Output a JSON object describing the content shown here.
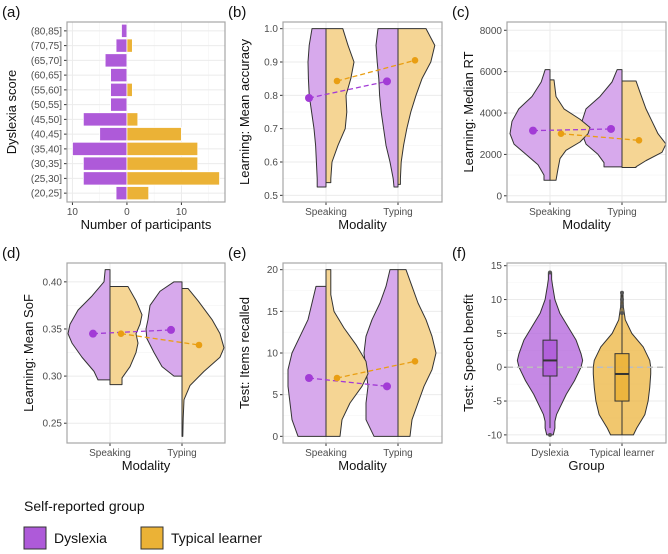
{
  "colors": {
    "dyslexia": "#AE5AD9",
    "dyslexia_light": "#D7A9EC",
    "typical": "#EBB236",
    "typical_light": "#F5D594",
    "outline": "#333333",
    "grid_major": "#EBEBEB",
    "grid_minor": "#F4F4F4",
    "frame": "#A6A6A6",
    "point_dys": "#A23BD6",
    "point_typ": "#E99E12"
  },
  "legend": {
    "title": "Self-reported group",
    "items": [
      {
        "key": "dyslexia",
        "label": "Dyslexia"
      },
      {
        "key": "typical",
        "label": "Typical learner"
      }
    ]
  },
  "chart_data": [
    {
      "id": "a",
      "panel_label": "(a)",
      "type": "bar",
      "orientation": "horizontal-back-to-back",
      "ylabel": "Dyslexia score",
      "xlabel": "Number of participants",
      "xticks": [
        -10,
        0,
        10
      ],
      "xtick_labels": [
        "10",
        "0",
        "10"
      ],
      "xlim": [
        -11,
        18
      ],
      "categories": [
        "(20,25]",
        "(25,30]",
        "(30,35]",
        "(35,40]",
        "(40,45]",
        "(45,50]",
        "(50,55]",
        "(55,60]",
        "(60,65]",
        "(65,70]",
        "(70,75]",
        "(80,85]"
      ],
      "series": [
        {
          "name": "Dyslexia",
          "values": [
            2,
            8,
            8,
            10,
            5,
            8,
            3,
            3,
            3,
            4,
            2,
            1
          ]
        },
        {
          "name": "Typical learner",
          "values": [
            4,
            17,
            13,
            13,
            10,
            2,
            0,
            1,
            0,
            0,
            1,
            0
          ]
        }
      ]
    },
    {
      "id": "b",
      "panel_label": "(b)",
      "type": "split-violin",
      "ylabel": "Learning: Mean accuracy",
      "xlabel": "Modality",
      "categories": [
        "Speaking",
        "Typing"
      ],
      "ylim": [
        0.48,
        1.02
      ],
      "yticks": [
        0.5,
        0.6,
        0.7,
        0.8,
        0.9,
        1.0
      ],
      "ytick_labels": [
        "0.5",
        "0.6",
        "0.7",
        "0.8",
        "0.9",
        "1.0"
      ],
      "means": {
        "Dyslexia": [
          0.792,
          0.842
        ],
        "Typical learner": [
          0.843,
          0.905
        ]
      },
      "violins": {
        "Dyslexia": [
          [
            [
              1.0,
              0.35
            ],
            [
              0.95,
              0.42
            ],
            [
              0.9,
              0.45
            ],
            [
              0.85,
              0.44
            ],
            [
              0.8,
              0.42
            ],
            [
              0.75,
              0.36
            ],
            [
              0.7,
              0.3
            ],
            [
              0.65,
              0.26
            ],
            [
              0.6,
              0.24
            ],
            [
              0.55,
              0.22
            ],
            [
              0.525,
              0.22
            ]
          ],
          [
            [
              1.0,
              0.5
            ],
            [
              0.95,
              0.55
            ],
            [
              0.9,
              0.52
            ],
            [
              0.85,
              0.48
            ],
            [
              0.8,
              0.46
            ],
            [
              0.75,
              0.42
            ],
            [
              0.7,
              0.36
            ],
            [
              0.65,
              0.3
            ],
            [
              0.6,
              0.2
            ],
            [
              0.55,
              0.12
            ],
            [
              0.525,
              0.1
            ]
          ]
        ],
        "Typical learner": [
          [
            [
              1.0,
              0.42
            ],
            [
              0.95,
              0.55
            ],
            [
              0.9,
              0.7
            ],
            [
              0.85,
              0.62
            ],
            [
              0.8,
              0.5
            ],
            [
              0.75,
              0.52
            ],
            [
              0.7,
              0.48
            ],
            [
              0.65,
              0.3
            ],
            [
              0.6,
              0.15
            ],
            [
              0.55,
              0.12
            ],
            [
              0.538,
              0.12
            ]
          ],
          [
            [
              1.0,
              0.7
            ],
            [
              0.95,
              0.92
            ],
            [
              0.9,
              0.82
            ],
            [
              0.85,
              0.6
            ],
            [
              0.8,
              0.45
            ],
            [
              0.75,
              0.32
            ],
            [
              0.7,
              0.22
            ],
            [
              0.65,
              0.14
            ],
            [
              0.6,
              0.08
            ],
            [
              0.55,
              0.06
            ],
            [
              0.533,
              0.06
            ]
          ]
        ]
      }
    },
    {
      "id": "c",
      "panel_label": "(c)",
      "type": "split-violin",
      "ylabel": "Learning: Median RT",
      "xlabel": "Modality",
      "categories": [
        "Speaking",
        "Typing"
      ],
      "ylim": [
        -300,
        8400
      ],
      "yticks": [
        0,
        2000,
        4000,
        6000,
        8000
      ],
      "ytick_labels": [
        "0",
        "2000",
        "4000",
        "6000",
        "8000"
      ],
      "means": {
        "Dyslexia": [
          3150,
          3230
        ],
        "Typical learner": [
          3000,
          2680
        ]
      },
      "violins": {
        "Dyslexia": [
          [
            [
              6100,
              0.12
            ],
            [
              5500,
              0.22
            ],
            [
              4800,
              0.45
            ],
            [
              4200,
              0.78
            ],
            [
              3600,
              0.95
            ],
            [
              3000,
              1.0
            ],
            [
              2500,
              0.9
            ],
            [
              2000,
              0.6
            ],
            [
              1500,
              0.3
            ],
            [
              1000,
              0.15
            ],
            [
              750,
              0.15
            ]
          ],
          [
            [
              6100,
              0.12
            ],
            [
              5500,
              0.25
            ],
            [
              4800,
              0.55
            ],
            [
              4200,
              0.9
            ],
            [
              3600,
              1.0
            ],
            [
              3000,
              1.0
            ],
            [
              2500,
              0.9
            ],
            [
              2000,
              0.6
            ],
            [
              1600,
              0.45
            ],
            [
              1400,
              0.45
            ]
          ]
        ],
        "Typical learner": [
          [
            [
              5600,
              0.1
            ],
            [
              4800,
              0.15
            ],
            [
              4200,
              0.35
            ],
            [
              3700,
              0.75
            ],
            [
              3300,
              1.0
            ],
            [
              3000,
              0.95
            ],
            [
              2600,
              0.75
            ],
            [
              2200,
              0.4
            ],
            [
              1800,
              0.25
            ],
            [
              1300,
              0.2
            ],
            [
              750,
              0.15
            ]
          ],
          [
            [
              5550,
              0.35
            ],
            [
              5000,
              0.45
            ],
            [
              4200,
              0.6
            ],
            [
              3600,
              0.75
            ],
            [
              3000,
              0.9
            ],
            [
              2500,
              1.1
            ],
            [
              2100,
              1.0
            ],
            [
              1700,
              0.6
            ],
            [
              1400,
              0.35
            ],
            [
              1370,
              0.35
            ]
          ]
        ]
      }
    },
    {
      "id": "d",
      "panel_label": "(d)",
      "type": "split-violin",
      "ylabel": "Learning: Mean SoF",
      "xlabel": "Modality",
      "categories": [
        "Speaking",
        "Typing"
      ],
      "ylim": [
        0.229,
        0.42
      ],
      "yticks": [
        0.25,
        0.3,
        0.35,
        0.4
      ],
      "ytick_labels": [
        "0.25",
        "0.30",
        "0.35",
        "0.40"
      ],
      "means": {
        "Dyslexia": [
          0.345,
          0.349
        ],
        "Typical learner": [
          0.345,
          0.333
        ]
      },
      "violins": {
        "Dyslexia": [
          [
            [
              0.413,
              0.12
            ],
            [
              0.4,
              0.15
            ],
            [
              0.385,
              0.45
            ],
            [
              0.37,
              0.8
            ],
            [
              0.355,
              1.0
            ],
            [
              0.345,
              1.05
            ],
            [
              0.335,
              0.95
            ],
            [
              0.32,
              0.7
            ],
            [
              0.305,
              0.4
            ],
            [
              0.296,
              0.3
            ]
          ],
          [
            [
              0.4,
              0.2
            ],
            [
              0.39,
              0.55
            ],
            [
              0.375,
              0.8
            ],
            [
              0.36,
              0.85
            ],
            [
              0.35,
              0.9
            ],
            [
              0.34,
              0.88
            ],
            [
              0.325,
              0.7
            ],
            [
              0.31,
              0.5
            ],
            [
              0.3,
              0.2
            ]
          ]
        ],
        "Typical learner": [
          [
            [
              0.395,
              0.45
            ],
            [
              0.38,
              0.65
            ],
            [
              0.365,
              0.8
            ],
            [
              0.355,
              0.75
            ],
            [
              0.345,
              0.65
            ],
            [
              0.335,
              0.7
            ],
            [
              0.325,
              0.65
            ],
            [
              0.31,
              0.5
            ],
            [
              0.298,
              0.3
            ],
            [
              0.291,
              0.3
            ]
          ],
          [
            [
              0.393,
              0.15
            ],
            [
              0.38,
              0.4
            ],
            [
              0.36,
              0.75
            ],
            [
              0.345,
              0.95
            ],
            [
              0.33,
              1.05
            ],
            [
              0.32,
              0.95
            ],
            [
              0.305,
              0.55
            ],
            [
              0.29,
              0.2
            ],
            [
              0.275,
              0.05
            ],
            [
              0.255,
              0.03
            ],
            [
              0.236,
              0.02
            ]
          ]
        ]
      }
    },
    {
      "id": "e",
      "panel_label": "(e)",
      "type": "split-violin",
      "ylabel": "Test: Items recalled",
      "xlabel": "Modality",
      "categories": [
        "Speaking",
        "Typing"
      ],
      "ylim": [
        -0.8,
        20.8
      ],
      "yticks": [
        0,
        5,
        10,
        15,
        20
      ],
      "ytick_labels": [
        "0",
        "5",
        "10",
        "15",
        "20"
      ],
      "means": {
        "Dyslexia": [
          7.0,
          6.0
        ],
        "Typical learner": [
          7.0,
          9.0
        ]
      },
      "violins": {
        "Dyslexia": [
          [
            [
              18,
              0.25
            ],
            [
              16,
              0.35
            ],
            [
              14,
              0.45
            ],
            [
              12,
              0.65
            ],
            [
              10,
              0.85
            ],
            [
              8,
              0.95
            ],
            [
              6,
              0.95
            ],
            [
              4,
              0.9
            ],
            [
              2,
              0.85
            ],
            [
              0,
              0.7
            ]
          ],
          [
            [
              20,
              0.2
            ],
            [
              18,
              0.3
            ],
            [
              16,
              0.45
            ],
            [
              14,
              0.65
            ],
            [
              12,
              0.8
            ],
            [
              10,
              0.85
            ],
            [
              8,
              0.8
            ],
            [
              6,
              0.75
            ],
            [
              4,
              0.8
            ],
            [
              2,
              0.8
            ],
            [
              0,
              0.6
            ]
          ]
        ],
        "Typical learner": [
          [
            [
              20,
              0.12
            ],
            [
              17,
              0.12
            ],
            [
              15,
              0.2
            ],
            [
              13,
              0.45
            ],
            [
              11,
              0.75
            ],
            [
              9,
              1.0
            ],
            [
              7.5,
              1.05
            ],
            [
              6,
              0.9
            ],
            [
              4,
              0.6
            ],
            [
              2,
              0.4
            ],
            [
              0,
              0.35
            ]
          ],
          [
            [
              20,
              0.2
            ],
            [
              18,
              0.35
            ],
            [
              16,
              0.5
            ],
            [
              14,
              0.7
            ],
            [
              12,
              0.85
            ],
            [
              10,
              0.95
            ],
            [
              8,
              0.85
            ],
            [
              6,
              0.65
            ],
            [
              4,
              0.5
            ],
            [
              2,
              0.35
            ],
            [
              0,
              0.3
            ]
          ]
        ]
      }
    },
    {
      "id": "f",
      "panel_label": "(f)",
      "type": "violin-box",
      "ylabel": "Test: Speech benefit",
      "xlabel": "Group",
      "categories": [
        "Dyslexia",
        "Typical learner"
      ],
      "ylim": [
        -11.2,
        15.4
      ],
      "yticks": [
        -10,
        -5,
        0,
        5,
        10,
        15
      ],
      "ytick_labels": [
        "-10",
        "-5",
        "0",
        "5",
        "10",
        "15"
      ],
      "reference_line": 0,
      "boxes": [
        {
          "group": "Dyslexia",
          "whisker_low": -9,
          "q1": -1.3,
          "median": 1,
          "q3": 4,
          "whisker_high": 10,
          "outliers": [
            14,
            -10
          ]
        },
        {
          "group": "Typical learner",
          "whisker_low": -10,
          "q1": -5,
          "median": -1,
          "q3": 2,
          "whisker_high": 11,
          "outliers": [
            8,
            9,
            10,
            11
          ]
        }
      ],
      "violins": [
        [
          [
            14,
            0.05
          ],
          [
            13,
            0.05
          ],
          [
            12,
            0.08
          ],
          [
            10,
            0.15
          ],
          [
            8,
            0.3
          ],
          [
            6,
            0.55
          ],
          [
            4,
            0.8
          ],
          [
            2,
            0.95
          ],
          [
            1,
            1.0
          ],
          [
            0,
            0.95
          ],
          [
            -2,
            0.75
          ],
          [
            -4,
            0.5
          ],
          [
            -6,
            0.3
          ],
          [
            -7,
            0.2
          ],
          [
            -8,
            0.15
          ],
          [
            -9,
            0.15
          ],
          [
            -10,
            0.1
          ]
        ],
        [
          [
            11,
            0.03
          ],
          [
            9,
            0.04
          ],
          [
            7,
            0.1
          ],
          [
            5,
            0.3
          ],
          [
            3,
            0.65
          ],
          [
            1,
            0.85
          ],
          [
            0,
            0.88
          ],
          [
            -1,
            0.88
          ],
          [
            -3,
            0.85
          ],
          [
            -5,
            0.8
          ],
          [
            -7,
            0.7
          ],
          [
            -9,
            0.45
          ],
          [
            -10,
            0.35
          ]
        ]
      ]
    }
  ]
}
